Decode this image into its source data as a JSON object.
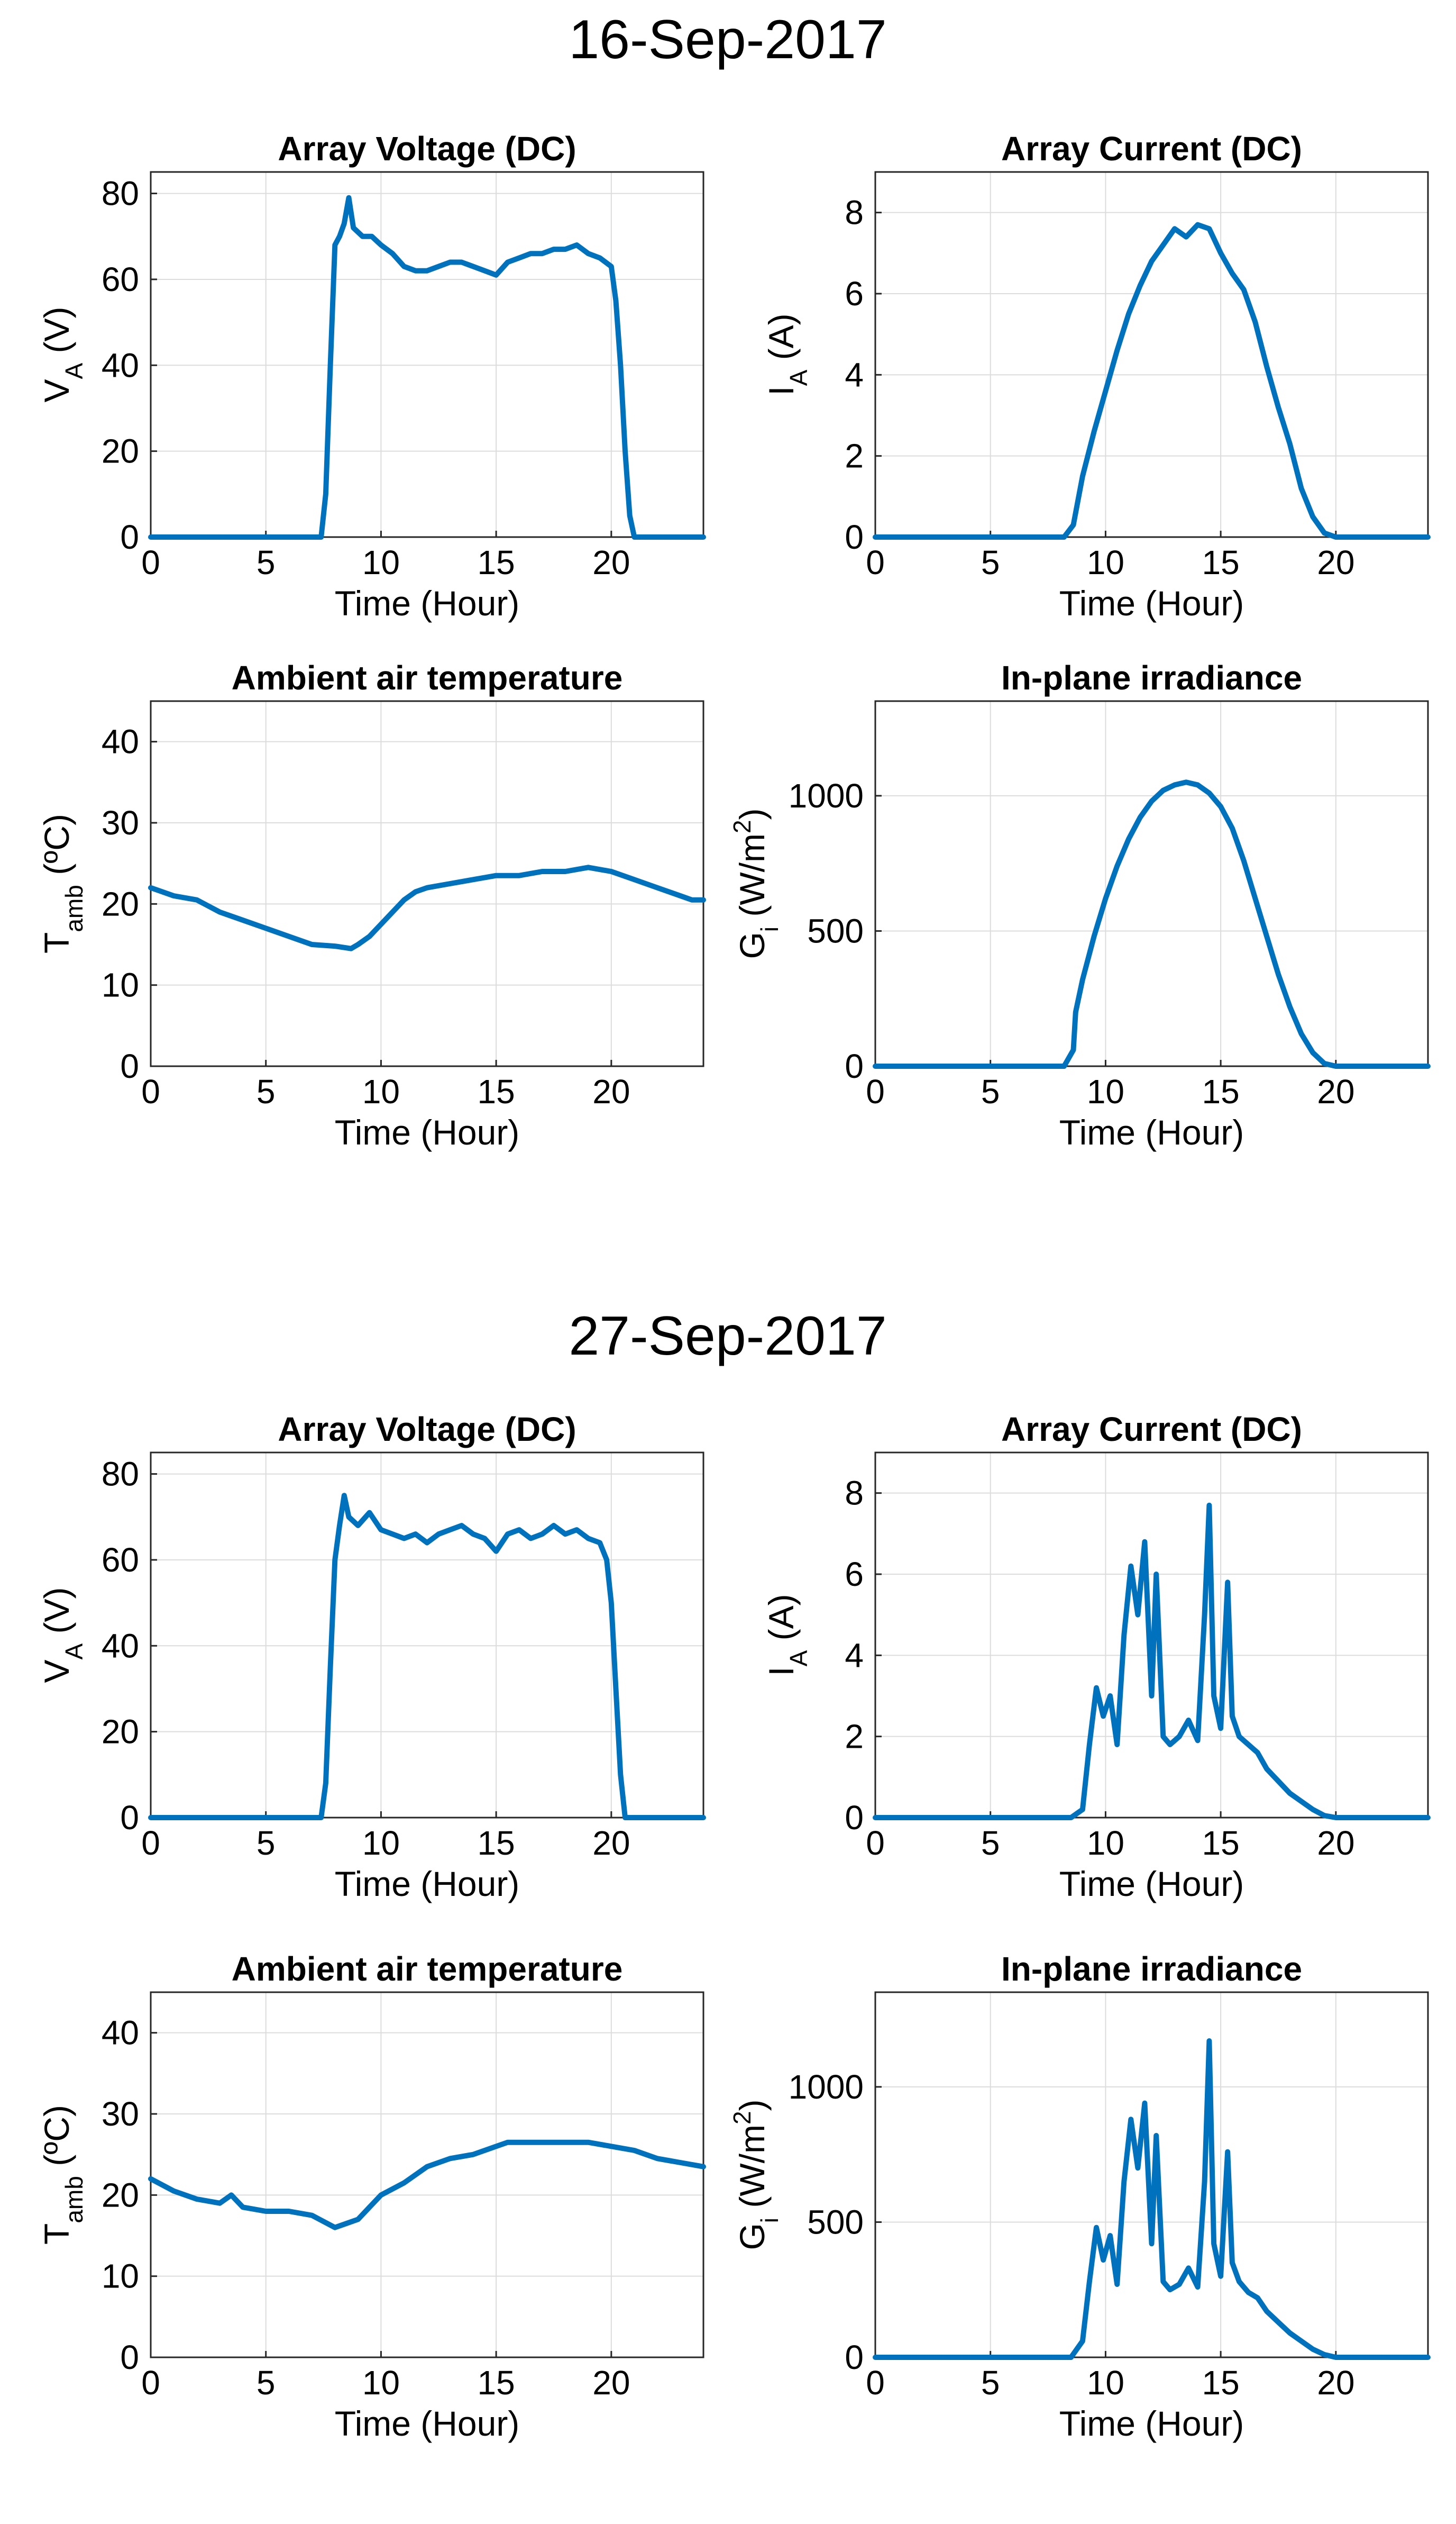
{
  "series_color": "#0072BD",
  "sections": [
    {
      "date_title": "16-Sep-2017",
      "charts": [
        {
          "type": "line",
          "id": "voltage",
          "title": "Array Voltage (DC)",
          "xlabel": "Time (Hour)",
          "ylabel": {
            "main": "V",
            "sub": "A",
            "tail": " (V)"
          },
          "xlim": [
            0,
            24
          ],
          "ylim": [
            0,
            85
          ],
          "xticks": [
            0,
            5,
            10,
            15,
            20
          ],
          "yticks": [
            0,
            20,
            40,
            60,
            80
          ],
          "x": [
            0,
            7.4,
            7.6,
            7.8,
            8.0,
            8.2,
            8.4,
            8.6,
            8.8,
            9.2,
            9.6,
            10.0,
            10.5,
            11.0,
            11.5,
            12.0,
            12.5,
            13.0,
            13.5,
            14.0,
            14.5,
            15.0,
            15.5,
            16.0,
            16.5,
            17.0,
            17.5,
            18.0,
            18.5,
            19.0,
            19.5,
            20.0,
            20.2,
            20.4,
            20.6,
            20.8,
            21.0,
            24
          ],
          "y": [
            0,
            0,
            10,
            40,
            68,
            70,
            73,
            79,
            72,
            70,
            70,
            68,
            66,
            63,
            62,
            62,
            63,
            64,
            64,
            63,
            62,
            61,
            64,
            65,
            66,
            66,
            67,
            67,
            68,
            66,
            65,
            63,
            55,
            40,
            20,
            5,
            0,
            0
          ]
        },
        {
          "type": "line",
          "id": "current",
          "title": "Array Current (DC)",
          "xlabel": "Time (Hour)",
          "ylabel": {
            "main": "I",
            "sub": "A",
            "tail": " (A)"
          },
          "xlim": [
            0,
            24
          ],
          "ylim": [
            0,
            9
          ],
          "xticks": [
            0,
            5,
            10,
            15,
            20
          ],
          "yticks": [
            0,
            2,
            4,
            6,
            8
          ],
          "x": [
            0,
            8.2,
            8.6,
            9.0,
            9.5,
            10.0,
            10.5,
            11.0,
            11.5,
            12.0,
            12.5,
            13.0,
            13.5,
            14.0,
            14.5,
            15.0,
            15.5,
            16.0,
            16.5,
            17.0,
            17.5,
            18.0,
            18.5,
            19.0,
            19.5,
            20.0,
            24
          ],
          "y": [
            0,
            0,
            0.3,
            1.5,
            2.6,
            3.6,
            4.6,
            5.5,
            6.2,
            6.8,
            7.2,
            7.6,
            7.4,
            7.7,
            7.6,
            7.0,
            6.5,
            6.1,
            5.3,
            4.2,
            3.2,
            2.3,
            1.2,
            0.5,
            0.1,
            0,
            0
          ]
        },
        {
          "type": "line",
          "id": "temperature",
          "title": "Ambient air temperature",
          "xlabel": "Time (Hour)",
          "ylabel": {
            "main": "T",
            "sub": "amb",
            "tail": " (ºC)"
          },
          "xlim": [
            0,
            24
          ],
          "ylim": [
            0,
            45
          ],
          "xticks": [
            0,
            5,
            10,
            15,
            20
          ],
          "yticks": [
            0,
            10,
            20,
            30,
            40
          ],
          "x": [
            0,
            1,
            2,
            3,
            4,
            5,
            6,
            7,
            8,
            8.7,
            9,
            9.5,
            10,
            10.5,
            11,
            11.5,
            12,
            13,
            14,
            15,
            16,
            17,
            18,
            19,
            20,
            21,
            22,
            23,
            23.5,
            24
          ],
          "y": [
            22,
            21,
            20.5,
            19,
            18,
            17,
            16,
            15,
            14.8,
            14.5,
            15,
            16,
            17.5,
            19,
            20.5,
            21.5,
            22,
            22.5,
            23,
            23.5,
            23.5,
            24,
            24,
            24.5,
            24,
            23,
            22,
            21,
            20.5,
            20.5
          ]
        },
        {
          "type": "line",
          "id": "irradiance",
          "title": "In-plane irradiance",
          "xlabel": "Time (Hour)",
          "ylabel": {
            "main": "G",
            "sub": "i",
            "tail": " (W/m",
            "sup": "2",
            "end": ")"
          },
          "xlim": [
            0,
            24
          ],
          "ylim": [
            0,
            1350
          ],
          "xticks": [
            0,
            5,
            10,
            15,
            20
          ],
          "yticks": [
            0,
            500,
            1000
          ],
          "x": [
            0,
            8.2,
            8.6,
            8.7,
            9.0,
            9.5,
            10.0,
            10.5,
            11.0,
            11.5,
            12.0,
            12.5,
            13.0,
            13.5,
            14.0,
            14.5,
            15.0,
            15.5,
            16.0,
            16.5,
            17.0,
            17.5,
            18.0,
            18.5,
            19.0,
            19.5,
            20.0,
            24
          ],
          "y": [
            0,
            0,
            60,
            200,
            320,
            480,
            620,
            740,
            840,
            920,
            980,
            1020,
            1040,
            1050,
            1040,
            1010,
            960,
            880,
            760,
            620,
            480,
            340,
            220,
            120,
            50,
            10,
            0,
            0
          ]
        }
      ]
    },
    {
      "date_title": "27-Sep-2017",
      "charts": [
        {
          "type": "line",
          "id": "voltage",
          "title": "Array Voltage (DC)",
          "xlabel": "Time (Hour)",
          "ylabel": {
            "main": "V",
            "sub": "A",
            "tail": " (V)"
          },
          "xlim": [
            0,
            24
          ],
          "ylim": [
            0,
            85
          ],
          "xticks": [
            0,
            5,
            10,
            15,
            20
          ],
          "yticks": [
            0,
            20,
            40,
            60,
            80
          ],
          "x": [
            0,
            7.4,
            7.6,
            7.8,
            8.0,
            8.2,
            8.4,
            8.6,
            9.0,
            9.5,
            10.0,
            10.5,
            11.0,
            11.5,
            12.0,
            12.5,
            13.0,
            13.5,
            14.0,
            14.5,
            15.0,
            15.5,
            16.0,
            16.5,
            17.0,
            17.5,
            18.0,
            18.5,
            19.0,
            19.5,
            19.8,
            20.0,
            20.2,
            20.4,
            20.6,
            24
          ],
          "y": [
            0,
            0,
            8,
            35,
            60,
            68,
            75,
            70,
            68,
            71,
            67,
            66,
            65,
            66,
            64,
            66,
            67,
            68,
            66,
            65,
            62,
            66,
            67,
            65,
            66,
            68,
            66,
            67,
            65,
            64,
            60,
            50,
            30,
            10,
            0,
            0
          ]
        },
        {
          "type": "line",
          "id": "current",
          "title": "Array Current (DC)",
          "xlabel": "Time (Hour)",
          "ylabel": {
            "main": "I",
            "sub": "A",
            "tail": " (A)"
          },
          "xlim": [
            0,
            24
          ],
          "ylim": [
            0,
            9
          ],
          "xticks": [
            0,
            5,
            10,
            15,
            20
          ],
          "yticks": [
            0,
            2,
            4,
            6,
            8
          ],
          "x": [
            0,
            8.5,
            9.0,
            9.3,
            9.6,
            9.9,
            10.2,
            10.5,
            10.8,
            11.1,
            11.4,
            11.7,
            12.0,
            12.2,
            12.5,
            12.8,
            13.2,
            13.6,
            14.0,
            14.3,
            14.5,
            14.7,
            15.0,
            15.3,
            15.5,
            15.8,
            16.2,
            16.6,
            17.0,
            17.5,
            18.0,
            18.5,
            19.0,
            19.5,
            20.0,
            24
          ],
          "y": [
            0,
            0,
            0.2,
            1.8,
            3.2,
            2.5,
            3.0,
            1.8,
            4.5,
            6.2,
            5.0,
            6.8,
            3.0,
            6.0,
            2.0,
            1.8,
            2.0,
            2.4,
            1.9,
            5.0,
            7.7,
            3.0,
            2.2,
            5.8,
            2.5,
            2.0,
            1.8,
            1.6,
            1.2,
            0.9,
            0.6,
            0.4,
            0.2,
            0.05,
            0,
            0
          ]
        },
        {
          "type": "line",
          "id": "temperature",
          "title": "Ambient air temperature",
          "xlabel": "Time (Hour)",
          "ylabel": {
            "main": "T",
            "sub": "amb",
            "tail": " (ºC)"
          },
          "xlim": [
            0,
            24
          ],
          "ylim": [
            0,
            45
          ],
          "xticks": [
            0,
            5,
            10,
            15,
            20
          ],
          "yticks": [
            0,
            10,
            20,
            30,
            40
          ],
          "x": [
            0,
            1,
            2,
            3,
            3.5,
            4,
            5,
            6,
            7,
            8,
            8.5,
            9,
            9.5,
            10,
            11,
            12,
            13,
            14,
            15,
            15.5,
            16,
            17,
            18,
            19,
            20,
            21,
            22,
            23,
            24
          ],
          "y": [
            22,
            20.5,
            19.5,
            19,
            20,
            18.5,
            18,
            18,
            17.5,
            16,
            16.5,
            17,
            18.5,
            20,
            21.5,
            23.5,
            24.5,
            25,
            26,
            26.5,
            26.5,
            26.5,
            26.5,
            26.5,
            26,
            25.5,
            24.5,
            24,
            23.5
          ]
        },
        {
          "type": "line",
          "id": "irradiance",
          "title": "In-plane irradiance",
          "xlabel": "Time (Hour)",
          "ylabel": {
            "main": "G",
            "sub": "i",
            "tail": " (W/m",
            "sup": "2",
            "end": ")"
          },
          "xlim": [
            0,
            24
          ],
          "ylim": [
            0,
            1350
          ],
          "xticks": [
            0,
            5,
            10,
            15,
            20
          ],
          "yticks": [
            0,
            500,
            1000
          ],
          "x": [
            0,
            8.5,
            9.0,
            9.3,
            9.6,
            9.9,
            10.2,
            10.5,
            10.8,
            11.1,
            11.4,
            11.7,
            12.0,
            12.2,
            12.5,
            12.8,
            13.2,
            13.6,
            14.0,
            14.3,
            14.5,
            14.7,
            15.0,
            15.3,
            15.5,
            15.8,
            16.2,
            16.6,
            17.0,
            17.5,
            18.0,
            18.5,
            19.0,
            19.5,
            20.0,
            24
          ],
          "y": [
            0,
            0,
            60,
            280,
            480,
            360,
            450,
            270,
            650,
            880,
            700,
            940,
            420,
            820,
            280,
            250,
            270,
            330,
            260,
            650,
            1170,
            420,
            300,
            760,
            350,
            280,
            240,
            220,
            170,
            130,
            90,
            60,
            30,
            10,
            0,
            0
          ]
        }
      ]
    }
  ]
}
